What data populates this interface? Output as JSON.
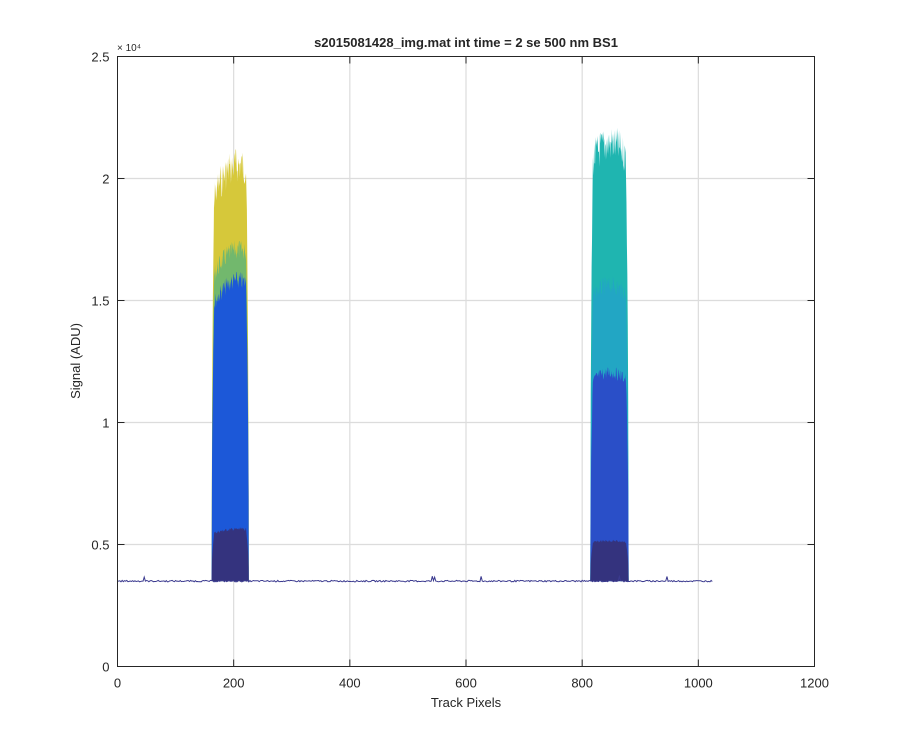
{
  "chart_data": {
    "type": "area",
    "title": "s2015081428_img.mat int time = 2 se  500 nm BS1",
    "xlabel": "Track Pixels",
    "ylabel": "Signal (ADU)",
    "y_exponent_label": "× 10⁴",
    "xlim": [
      0,
      1200
    ],
    "ylim": [
      0,
      25000
    ],
    "x_ticks": [
      0,
      200,
      400,
      600,
      800,
      1000,
      1200
    ],
    "x_tick_labels": [
      "0",
      "200",
      "400",
      "600",
      "800",
      "1000",
      "1200"
    ],
    "y_ticks": [
      0,
      5000,
      10000,
      15000,
      20000,
      25000
    ],
    "y_tick_labels": [
      "0",
      "0.5",
      "1",
      "1.5",
      "2",
      "2.5"
    ],
    "grid": true,
    "baseline": 3500,
    "x_extent": [
      0,
      1024
    ],
    "peaks": [
      {
        "x_start": 162,
        "x_end": 226,
        "x_max": 208,
        "layers": [
          {
            "top": 21300,
            "color": "#d6c83a"
          },
          {
            "top": 17500,
            "color": "#72b86d"
          },
          {
            "top": 16200,
            "color": "#1c58d8"
          },
          {
            "top": 5700,
            "color": "#34337e"
          }
        ]
      },
      {
        "x_start": 814,
        "x_end": 880,
        "x_max": 848,
        "layers": [
          {
            "top": 22200,
            "color": "#1fb5b0"
          },
          {
            "top": 16000,
            "color": "#22a6c4"
          },
          {
            "top": 12300,
            "color": "#2a4fc8"
          },
          {
            "top": 5200,
            "color": "#34337e"
          }
        ]
      }
    ]
  }
}
